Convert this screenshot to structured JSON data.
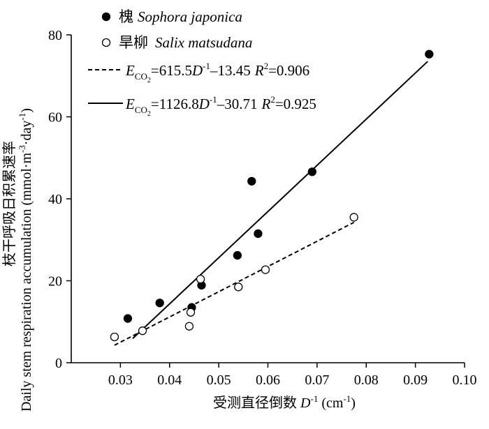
{
  "chart_data": {
    "type": "scatter",
    "xlabel": "受测直径倒数 D-1 (cm-1)",
    "xlabel_parts": {
      "cn": "受测直径倒数 ",
      "var": "D",
      "sup": "-1",
      "unit": " (cm",
      "unit_sup": "-1",
      "close": ")"
    },
    "ylabel": "Daily stem respiration accumulation (mmol·m-3·day-1) 枝干呼吸日积累速率",
    "ylabel_parts": {
      "en": "Daily stem respiration accumulation (mmol·m",
      "sup1": "-3",
      "mid": "·day",
      "sup2": "-1",
      "close": ")",
      "cn": "枝干呼吸日积累速率"
    },
    "xlim": [
      0.02,
      0.1
    ],
    "ylim": [
      0,
      80
    ],
    "x_ticks": [
      "0.03",
      "0.04",
      "0.05",
      "0.06",
      "0.07",
      "0.08",
      "0.09",
      "0.10"
    ],
    "x_tick_values": [
      0.03,
      0.04,
      0.05,
      0.06,
      0.07,
      0.08,
      0.09,
      0.1
    ],
    "y_ticks": [
      "0",
      "20",
      "40",
      "60",
      "80"
    ],
    "y_tick_values": [
      0,
      20,
      40,
      60,
      80
    ],
    "legend_position": "top-left",
    "series": [
      {
        "name": "槐 Sophora japonica",
        "name_cn": "槐",
        "name_latin": "Sophora japonica",
        "marker": "filled-circle",
        "color": "#000000",
        "points": [
          [
            0.0315,
            10.8
          ],
          [
            0.038,
            14.6
          ],
          [
            0.0445,
            13.5
          ],
          [
            0.0465,
            18.9
          ],
          [
            0.0538,
            26.2
          ],
          [
            0.0567,
            44.3
          ],
          [
            0.058,
            31.5
          ],
          [
            0.069,
            46.6
          ],
          [
            0.0928,
            75.3
          ]
        ],
        "fit": {
          "label_pre": "=1126.8",
          "label_post": "–30.71",
          "r2": "=0.925",
          "slope": 1126.8,
          "intercept": -30.71,
          "x_range": [
            0.0325,
            0.0925
          ],
          "line_style": "solid"
        }
      },
      {
        "name": "旱柳 Salix matsudana",
        "name_cn": "旱柳",
        "name_latin": "Salix matsudana",
        "marker": "open-circle",
        "color": "#000000",
        "points": [
          [
            0.0288,
            6.3
          ],
          [
            0.0345,
            7.8
          ],
          [
            0.044,
            8.9
          ],
          [
            0.0443,
            12.3
          ],
          [
            0.0463,
            20.4
          ],
          [
            0.054,
            18.5
          ],
          [
            0.0595,
            22.7
          ],
          [
            0.0775,
            35.5
          ]
        ],
        "fit": {
          "label_pre": "=615.5",
          "label_post": "–13.45",
          "r2": "=0.906",
          "slope": 615.5,
          "intercept": -13.45,
          "x_range": [
            0.0288,
            0.0775
          ],
          "line_style": "dashed"
        }
      }
    ],
    "equation_symbol": "E",
    "equation_subscript": "CO",
    "equation_subscript_num": "2",
    "equation_var": "D",
    "equation_exp": "-1",
    "r2_symbol": "R",
    "r2_exp": "2"
  }
}
